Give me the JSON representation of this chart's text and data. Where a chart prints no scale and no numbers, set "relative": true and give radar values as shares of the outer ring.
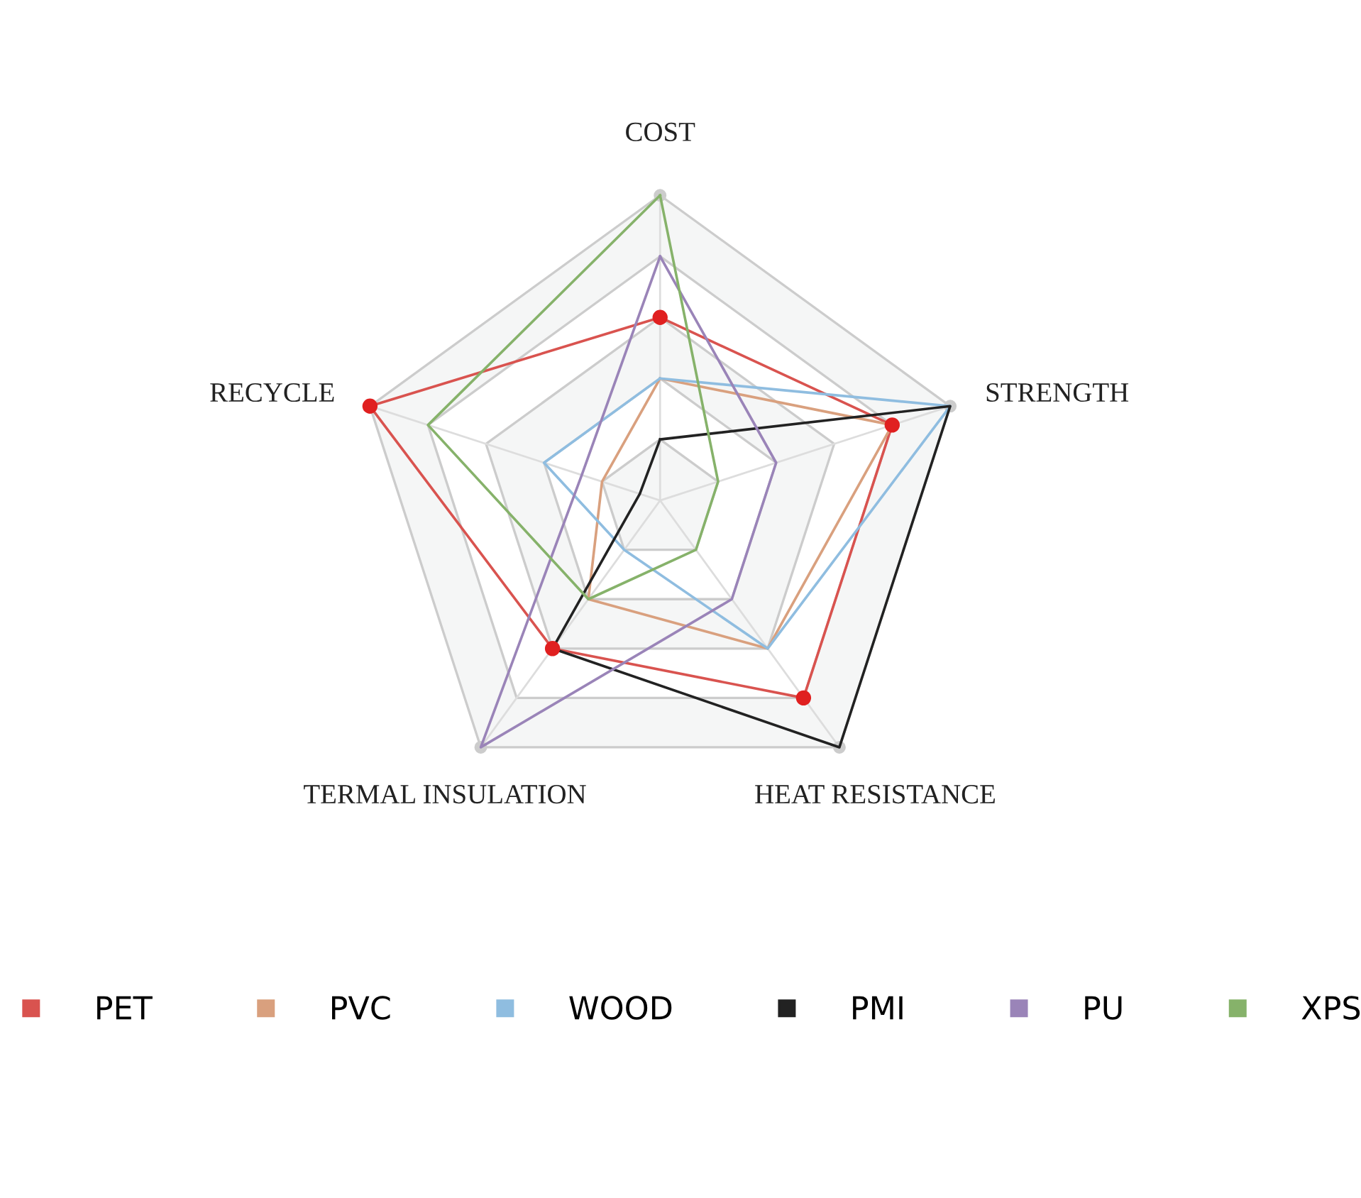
{
  "chart_data": {
    "type": "radar",
    "relative": true,
    "categories": [
      "COST",
      "STRENGTH",
      "HEAT RESISTANCE",
      "TERMAL INSULATION",
      "RECYCLE"
    ],
    "series": [
      {
        "name": "PET",
        "color": "#d9534f",
        "marker": "circle",
        "values": [
          0.6,
          0.8,
          0.8,
          0.6,
          1.0
        ]
      },
      {
        "name": "PVC",
        "color": "#d9a07e",
        "values": [
          0.4,
          0.8,
          0.6,
          0.4,
          0.2
        ]
      },
      {
        "name": "WOOD",
        "color": "#8fbde0",
        "values": [
          0.4,
          1.0,
          0.6,
          0.2,
          0.4
        ]
      },
      {
        "name": "PMI",
        "color": "#222222",
        "values": [
          0.2,
          1.0,
          1.0,
          0.6,
          0.07
        ]
      },
      {
        "name": "PU",
        "color": "#9a84b8",
        "values": [
          0.8,
          0.4,
          0.4,
          1.0,
          0.27
        ]
      },
      {
        "name": "XPS",
        "color": "#86b26a",
        "values": [
          1.0,
          0.2,
          0.2,
          0.4,
          0.8
        ]
      }
    ],
    "grid": true,
    "legend": "bottom"
  }
}
